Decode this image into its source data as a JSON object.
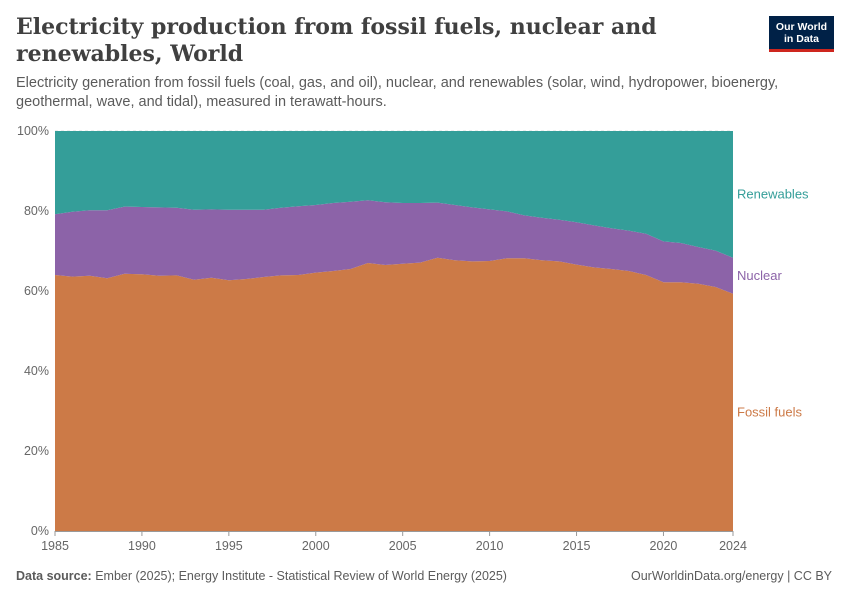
{
  "header": {
    "title": "Electricity production from fossil fuels, nuclear and renewables, World",
    "subtitle": "Electricity generation from fossil fuels (coal, gas, and oil), nuclear, and renewables (solar, wind, hydropower, bioenergy, geothermal, wave, and tidal), measured in terawatt-hours.",
    "logo_line1": "Our World",
    "logo_line2": "in Data"
  },
  "footer": {
    "source_label": "Data source:",
    "source_text": "Ember (2025); Energy Institute - Statistical Review of World Energy (2025)",
    "right_text": "OurWorldinData.org/energy | CC BY"
  },
  "colors": {
    "fossil": "#cc7a47",
    "nuclear": "#8c63a8",
    "renewables": "#349e99",
    "grid": "#dddddd",
    "axis_text": "#666666"
  },
  "chart_data": {
    "type": "area",
    "stacked": true,
    "relative": true,
    "x": [
      1985,
      1986,
      1987,
      1988,
      1989,
      1990,
      1991,
      1992,
      1993,
      1994,
      1995,
      1996,
      1997,
      1998,
      1999,
      2000,
      2001,
      2002,
      2003,
      2004,
      2005,
      2006,
      2007,
      2008,
      2009,
      2010,
      2011,
      2012,
      2013,
      2014,
      2015,
      2016,
      2017,
      2018,
      2019,
      2020,
      2021,
      2022,
      2023,
      2024
    ],
    "x_ticks": [
      1985,
      1990,
      1995,
      2000,
      2005,
      2010,
      2015,
      2020,
      2024
    ],
    "y_ticks": [
      "0%",
      "20%",
      "40%",
      "60%",
      "80%",
      "100%"
    ],
    "ylim": [
      0,
      100
    ],
    "series": [
      {
        "name": "Fossil fuels",
        "color_key": "fossil",
        "values": [
          64.0,
          63.6,
          63.8,
          63.2,
          64.3,
          64.2,
          63.8,
          63.9,
          62.8,
          63.3,
          62.7,
          63.0,
          63.5,
          63.9,
          64.0,
          64.6,
          65.0,
          65.5,
          67.0,
          66.5,
          66.8,
          67.1,
          68.3,
          67.7,
          67.4,
          67.5,
          68.2,
          68.2,
          67.7,
          67.4,
          66.6,
          65.9,
          65.5,
          65.0,
          64.0,
          62.2,
          62.2,
          61.8,
          61.0,
          59.3
        ]
      },
      {
        "name": "Nuclear",
        "color_key": "nuclear",
        "values": [
          15.2,
          16.2,
          16.4,
          17.0,
          16.8,
          16.8,
          17.1,
          16.9,
          17.5,
          17.1,
          17.6,
          17.3,
          16.8,
          16.9,
          17.2,
          16.9,
          17.0,
          16.8,
          15.7,
          15.7,
          15.2,
          14.9,
          13.8,
          13.8,
          13.5,
          12.9,
          11.7,
          10.7,
          10.6,
          10.4,
          10.6,
          10.5,
          10.2,
          10.1,
          10.3,
          10.2,
          9.8,
          9.2,
          9.1,
          9.0
        ]
      },
      {
        "name": "Renewables",
        "color_key": "renewables",
        "values": [
          20.8,
          20.2,
          19.8,
          19.8,
          18.9,
          19.0,
          19.1,
          19.2,
          19.7,
          19.6,
          19.7,
          19.7,
          19.7,
          19.2,
          18.8,
          18.5,
          18.0,
          17.7,
          17.3,
          17.8,
          18.0,
          18.0,
          17.9,
          18.5,
          19.1,
          19.6,
          20.1,
          21.1,
          21.7,
          22.2,
          22.8,
          23.6,
          24.3,
          24.9,
          25.7,
          27.6,
          28.0,
          29.0,
          29.9,
          31.7
        ]
      }
    ]
  }
}
